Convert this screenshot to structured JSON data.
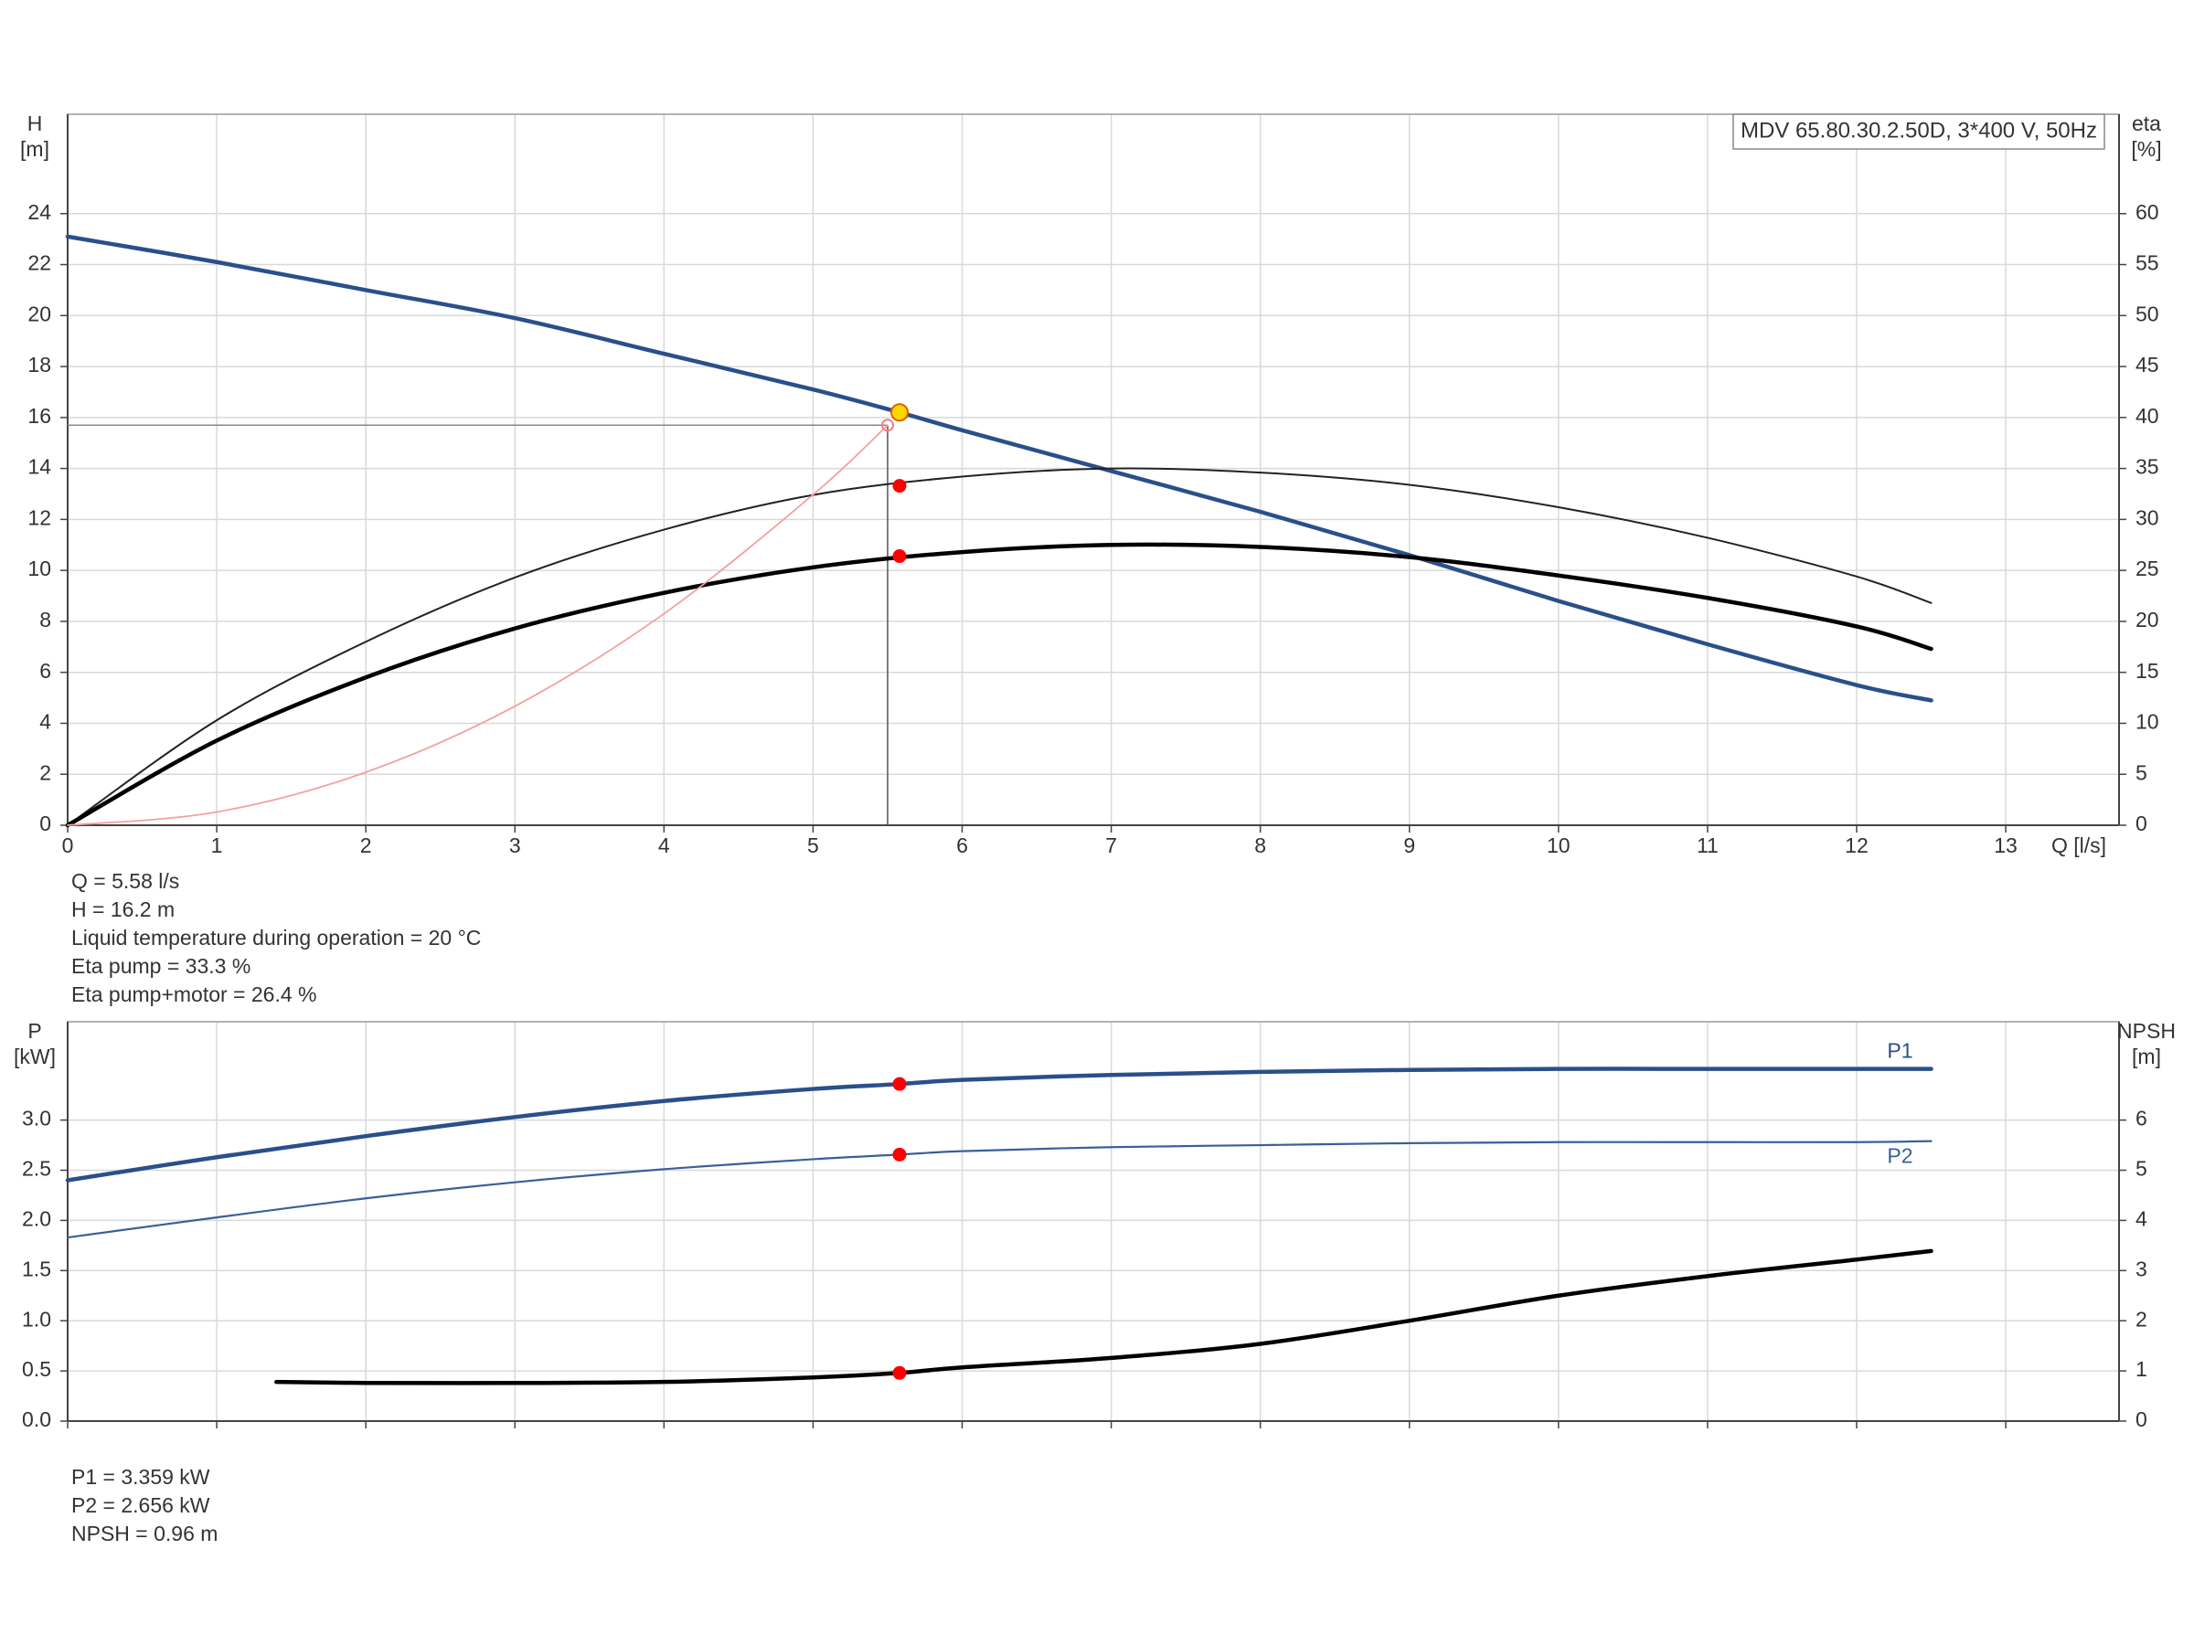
{
  "chart_data": [
    {
      "type": "line",
      "title": "MDV 65.80.30.2.50D, 3*400 V, 50Hz",
      "ylabel": [
        "H",
        "[m]"
      ],
      "y2label": [
        "eta",
        "[%]"
      ],
      "xlabel": "Q [l/s]",
      "xlim": [
        0,
        13.76
      ],
      "xticks": [
        0,
        1,
        2,
        3,
        4,
        5,
        6,
        7,
        8,
        9,
        10,
        11,
        12,
        13
      ],
      "xticklabels": true,
      "ylim": [
        0,
        27.9
      ],
      "yticks": [
        0,
        2,
        4,
        6,
        8,
        10,
        12,
        14,
        16,
        18,
        20,
        22,
        24
      ],
      "y2lim": [
        0,
        69.75
      ],
      "y2ticks": [
        0,
        5,
        10,
        15,
        20,
        25,
        30,
        35,
        40,
        45,
        50,
        55,
        60
      ],
      "grid": true,
      "series": [
        {
          "color": "#2a4f8a",
          "linewidth": 4.5,
          "x": [
            0,
            1,
            2,
            3,
            4,
            5,
            5.58,
            6,
            7,
            8,
            9,
            10,
            11,
            12,
            12.5
          ],
          "values": [
            23.1,
            22.1,
            21.0,
            19.9,
            18.5,
            17.1,
            16.2,
            15.5,
            13.9,
            12.3,
            10.6,
            8.8,
            7.1,
            5.5,
            4.9
          ]
        },
        {
          "color": "#222222",
          "linewidth": 2,
          "axis": "y2",
          "x": [
            0,
            1,
            2,
            3,
            4,
            5,
            6,
            7,
            8,
            9,
            10,
            11,
            12,
            12.5
          ],
          "values": [
            0,
            10.3,
            18,
            24.3,
            29,
            32.4,
            34.2,
            35,
            34.6,
            33.4,
            31.2,
            28.2,
            24.4,
            21.8
          ]
        },
        {
          "color": "#000000",
          "linewidth": 4.5,
          "axis": "y2",
          "x": [
            0,
            1,
            2,
            3,
            4,
            5,
            6,
            7,
            8,
            9,
            10,
            11,
            12,
            12.5
          ],
          "values": [
            0,
            8.3,
            14.5,
            19.3,
            22.8,
            25.3,
            26.8,
            27.5,
            27.3,
            26.3,
            24.5,
            22.3,
            19.5,
            17.3
          ]
        },
        {
          "color": "#f4a0a0",
          "linewidth": 1.8,
          "x": [
            0,
            1,
            2,
            3,
            4,
            5,
            5.5
          ],
          "values": [
            0,
            0.52,
            2.08,
            4.67,
            8.3,
            12.97,
            15.7
          ]
        }
      ],
      "points": [
        {
          "x": 5.5,
          "y": 15.7,
          "color": "#f08080",
          "open": true
        },
        {
          "x": 5.58,
          "y": 16.2,
          "color": "#ffd700"
        },
        {
          "x": 5.58,
          "y": 33.3,
          "color": "#ff0000",
          "axis": "y2"
        },
        {
          "x": 5.58,
          "y": 26.4,
          "color": "#ff0000",
          "axis": "y2"
        }
      ],
      "notes": [
        "Q = 5.58 l/s",
        "H = 16.2 m",
        "Liquid temperature during operation = 20 °C",
        "Eta pump = 33.3 %",
        "Eta pump+motor = 26.4 %"
      ]
    },
    {
      "type": "line",
      "ylabel": [
        "P",
        "[kW]"
      ],
      "y2label": [
        "NPSH",
        "[m]"
      ],
      "xlim": [
        0,
        13.76
      ],
      "xticks": [
        0,
        1,
        2,
        3,
        4,
        5,
        6,
        7,
        8,
        9,
        10,
        11,
        12,
        13
      ],
      "xticklabels": false,
      "ylim": [
        0,
        3.98
      ],
      "yticks": [
        {
          "value": 0,
          "label": "0.0"
        },
        0.5,
        {
          "value": 1,
          "label": "1.0"
        },
        1.5,
        {
          "value": 2,
          "label": "2.0"
        },
        2.5,
        {
          "value": 3,
          "label": "3.0"
        }
      ],
      "y2lim": [
        0,
        7.96
      ],
      "y2ticks": [
        0,
        1,
        2,
        3,
        4,
        5,
        6
      ],
      "grid": true,
      "series": [
        {
          "name": "P1",
          "color": "#2a4f8a",
          "linewidth": 4.5,
          "x": [
            0,
            1,
            2,
            3,
            4,
            5,
            5.58,
            6,
            7,
            8,
            9,
            10,
            11,
            12,
            12.5
          ],
          "values": [
            2.4,
            2.63,
            2.84,
            3.03,
            3.19,
            3.31,
            3.359,
            3.4,
            3.45,
            3.48,
            3.5,
            3.51,
            3.51,
            3.51,
            3.51
          ]
        },
        {
          "name": "P2",
          "color": "#3a5f9a",
          "linewidth": 2.2,
          "x": [
            0,
            1,
            2,
            3,
            4,
            5,
            5.58,
            6,
            7,
            8,
            9,
            10,
            11,
            12,
            12.5
          ],
          "values": [
            1.83,
            2.03,
            2.22,
            2.38,
            2.51,
            2.61,
            2.656,
            2.69,
            2.73,
            2.75,
            2.77,
            2.78,
            2.78,
            2.78,
            2.79
          ]
        },
        {
          "color": "#000000",
          "linewidth": 4.5,
          "axis": "y2",
          "x": [
            1.4,
            2,
            3,
            4,
            5,
            5.58,
            6,
            7,
            8,
            9,
            10,
            11,
            12,
            12.5
          ],
          "values": [
            0.78,
            0.76,
            0.76,
            0.78,
            0.87,
            0.96,
            1.07,
            1.26,
            1.54,
            2.0,
            2.5,
            2.89,
            3.22,
            3.39
          ]
        }
      ],
      "points": [
        {
          "x": 5.58,
          "y": 3.359,
          "color": "#ff0000"
        },
        {
          "x": 5.58,
          "y": 2.656,
          "color": "#ff0000"
        },
        {
          "x": 5.58,
          "y": 0.96,
          "color": "#ff0000",
          "axis": "y2"
        }
      ],
      "notes": [
        "P1 = 3.359 kW",
        "P2 = 2.656 kW",
        "NPSH = 0.96 m"
      ]
    }
  ]
}
